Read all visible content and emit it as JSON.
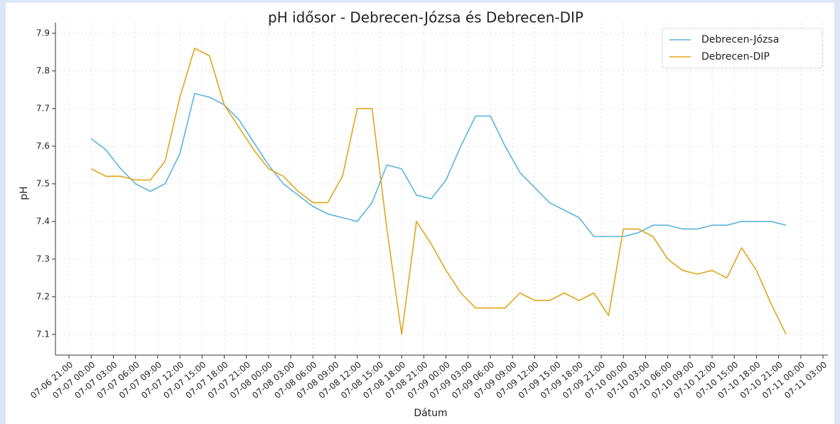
{
  "chart_data": {
    "type": "line",
    "title": "pH idősor - Debrecen-Józsa és Debrecen-DIP",
    "x_label": "Dátum",
    "y_label": "pH",
    "x": [
      "07-07 00:00",
      "07-07 02:00",
      "07-07 04:00",
      "07-07 06:00",
      "07-07 08:00",
      "07-07 10:00",
      "07-07 12:00",
      "07-07 14:00",
      "07-07 16:00",
      "07-07 18:00",
      "07-07 20:00",
      "07-07 22:00",
      "07-08 00:00",
      "07-08 02:00",
      "07-08 04:00",
      "07-08 06:00",
      "07-08 08:00",
      "07-08 10:00",
      "07-08 12:00",
      "07-08 14:00",
      "07-08 16:00",
      "07-08 18:00",
      "07-08 20:00",
      "07-08 22:00",
      "07-09 00:00",
      "07-09 02:00",
      "07-09 04:00",
      "07-09 06:00",
      "07-09 08:00",
      "07-09 10:00",
      "07-09 12:00",
      "07-09 14:00",
      "07-09 16:00",
      "07-09 18:00",
      "07-09 20:00",
      "07-09 22:00",
      "07-10 00:00",
      "07-10 02:00",
      "07-10 04:00",
      "07-10 06:00",
      "07-10 08:00",
      "07-10 10:00",
      "07-10 12:00",
      "07-10 14:00",
      "07-10 16:00",
      "07-10 18:00",
      "07-10 20:00",
      "07-10 22:00"
    ],
    "series": [
      {
        "name": "Debrecen-Józsa",
        "color": "#5bb5dc",
        "values": [
          7.62,
          7.59,
          7.54,
          7.5,
          7.48,
          7.5,
          7.58,
          7.74,
          7.73,
          7.71,
          7.67,
          7.61,
          7.55,
          7.5,
          7.47,
          7.44,
          7.42,
          7.41,
          7.4,
          7.45,
          7.55,
          7.54,
          7.47,
          7.46,
          7.51,
          7.6,
          7.68,
          7.68,
          7.6,
          7.53,
          7.49,
          7.45,
          7.43,
          7.41,
          7.36,
          7.36,
          7.36,
          7.37,
          7.39,
          7.39,
          7.38,
          7.38,
          7.39,
          7.39,
          7.4,
          7.4,
          7.4,
          7.39
        ]
      },
      {
        "name": "Debrecen-DIP",
        "color": "#e3a51c",
        "values": [
          7.54,
          7.52,
          7.52,
          7.51,
          7.51,
          7.56,
          7.73,
          7.86,
          7.84,
          7.71,
          7.65,
          7.59,
          7.54,
          7.52,
          7.48,
          7.45,
          7.45,
          7.52,
          7.7,
          7.7,
          7.38,
          7.1,
          7.4,
          7.34,
          7.27,
          7.21,
          7.17,
          7.17,
          7.17,
          7.21,
          7.19,
          7.19,
          7.21,
          7.19,
          7.21,
          7.15,
          7.38,
          7.38,
          7.36,
          7.3,
          7.27,
          7.26,
          7.27,
          7.25,
          7.33,
          7.27,
          7.18,
          7.1
        ]
      }
    ],
    "xlim": [
      "07-06 19:10",
      "07-11 03:40"
    ],
    "xticks": [
      "07-06 21:00",
      "07-07 00:00",
      "07-07 03:00",
      "07-07 06:00",
      "07-07 09:00",
      "07-07 12:00",
      "07-07 15:00",
      "07-07 18:00",
      "07-07 21:00",
      "07-08 00:00",
      "07-08 03:00",
      "07-08 06:00",
      "07-08 09:00",
      "07-08 12:00",
      "07-08 15:00",
      "07-08 18:00",
      "07-08 21:00",
      "07-09 00:00",
      "07-09 03:00",
      "07-09 06:00",
      "07-09 09:00",
      "07-09 12:00",
      "07-09 15:00",
      "07-09 18:00",
      "07-09 21:00",
      "07-10 00:00",
      "07-10 03:00",
      "07-10 06:00",
      "07-10 09:00",
      "07-10 12:00",
      "07-10 15:00",
      "07-10 18:00",
      "07-10 21:00",
      "07-11 00:00",
      "07-11 03:00"
    ],
    "ylim": [
      7.045,
      7.928
    ],
    "yticks": [
      7.1,
      7.2,
      7.3,
      7.4,
      7.5,
      7.6,
      7.7,
      7.8,
      7.9
    ],
    "grid": true,
    "legend": "upper right"
  }
}
